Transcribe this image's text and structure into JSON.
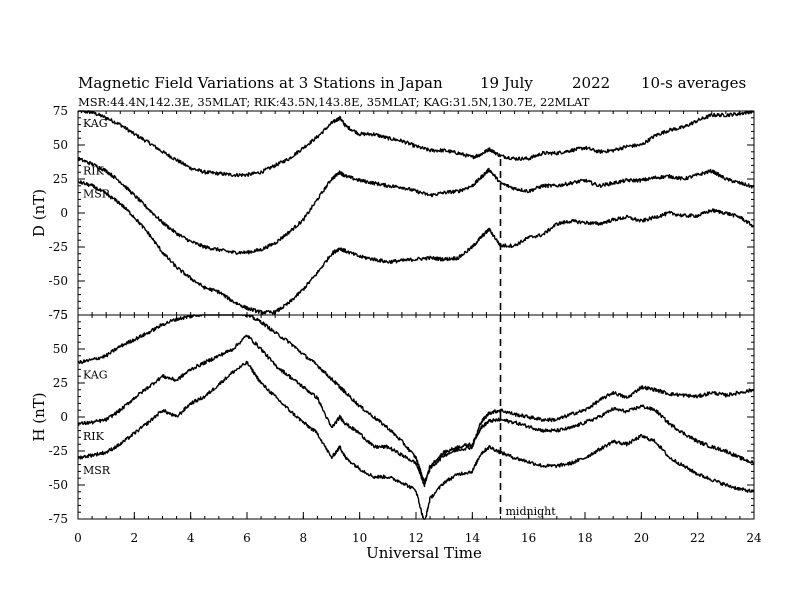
{
  "header": {
    "title": "Magnetic Field Variations at 3 Stations in Japan",
    "date": "19 July",
    "year": "2022",
    "resolution": "10-s averages",
    "stations_line": "MSR:44.4N,142.3E, 35MLAT;  RIK:43.5N,143.8E, 35MLAT;  KAG:31.5N,130.7E, 22MLAT"
  },
  "chart_data": {
    "type": "line",
    "x_label": "Universal Time",
    "x_range": [
      0,
      24
    ],
    "x_ticks": [
      "0",
      "2",
      "4",
      "6",
      "8",
      "10",
      "12",
      "14",
      "16",
      "18",
      "20",
      "22",
      "24"
    ],
    "marker": {
      "x": 15,
      "label": "midnight"
    },
    "panels": [
      {
        "id": "D",
        "y_label": "D (nT)",
        "y_range": [
          -75,
          75
        ],
        "y_ticks": [
          "75",
          "50",
          "25",
          "0",
          "-25",
          "-50",
          "-75"
        ],
        "series": [
          {
            "name": "KAG",
            "x": [
              0,
              0.5,
              1,
              1.5,
              2,
              2.5,
              3,
              3.5,
              4,
              4.5,
              5,
              5.5,
              6,
              6.5,
              7,
              7.5,
              8,
              8.5,
              9,
              9.3,
              9.5,
              10,
              10.5,
              11,
              11.5,
              12,
              12.5,
              13,
              13.5,
              14,
              14.3,
              14.6,
              15,
              15.5,
              16,
              16.5,
              17,
              17.5,
              18,
              18.5,
              19,
              19.5,
              20,
              20.5,
              21,
              21.5,
              22,
              22.5,
              23,
              23.5,
              24
            ],
            "y": [
              75,
              74,
              70,
              65,
              58,
              52,
              45,
              39,
              33,
              30,
              29,
              28,
              28,
              30,
              35,
              40,
              48,
              56,
              66,
              70,
              64,
              58,
              58,
              55,
              53,
              49,
              46,
              46,
              44,
              41,
              43,
              47,
              42,
              40,
              40,
              44,
              44,
              46,
              48,
              45,
              46,
              49,
              50,
              57,
              61,
              63,
              68,
              72,
              72,
              73,
              75
            ]
          },
          {
            "name": "RIK",
            "x": [
              0,
              0.5,
              1,
              1.5,
              2,
              2.5,
              3,
              3.5,
              4,
              4.5,
              5,
              5.5,
              6,
              6.5,
              7,
              7.5,
              8,
              8.5,
              9,
              9.3,
              9.5,
              10,
              10.5,
              11,
              11.5,
              12,
              12.5,
              13,
              13.5,
              14,
              14.3,
              14.6,
              15,
              15.5,
              16,
              16.5,
              17,
              17.5,
              18,
              18.5,
              19,
              19.5,
              20,
              20.5,
              21,
              21.5,
              22,
              22.5,
              23,
              23.5,
              24
            ],
            "y": [
              40,
              36,
              31,
              23,
              13,
              3,
              -7,
              -15,
              -21,
              -25,
              -27,
              -29,
              -29,
              -27,
              -22,
              -14,
              -5,
              10,
              25,
              30,
              27,
              24,
              22,
              20,
              19,
              16,
              13,
              15,
              16,
              20,
              26,
              32,
              22,
              18,
              16,
              20,
              20,
              22,
              24,
              20,
              22,
              24,
              24,
              26,
              27,
              25,
              28,
              31,
              25,
              22,
              19
            ]
          },
          {
            "name": "MSR",
            "x": [
              0,
              0.5,
              1,
              1.5,
              2,
              2.5,
              3,
              3.5,
              4,
              4.5,
              5,
              5.5,
              6,
              6.5,
              7,
              7.5,
              8,
              8.5,
              9,
              9.3,
              9.5,
              10,
              10.5,
              11,
              11.5,
              12,
              12.5,
              13,
              13.5,
              14,
              14.3,
              14.6,
              15,
              15.5,
              16,
              16.5,
              17,
              17.5,
              18,
              18.5,
              19,
              19.5,
              20,
              20.5,
              21,
              21.5,
              22,
              22.5,
              23,
              23.5,
              24
            ],
            "y": [
              23,
              20,
              14,
              7,
              -3,
              -15,
              -29,
              -40,
              -48,
              -55,
              -58,
              -65,
              -70,
              -73,
              -73,
              -66,
              -56,
              -44,
              -30,
              -26,
              -28,
              -32,
              -34,
              -36,
              -35,
              -34,
              -33,
              -34,
              -33,
              -25,
              -18,
              -12,
              -24,
              -24,
              -18,
              -16,
              -8,
              -6,
              -7,
              -8,
              -5,
              -3,
              -6,
              -3,
              0,
              -2,
              -2,
              2,
              0,
              -3,
              -10
            ]
          }
        ]
      },
      {
        "id": "H",
        "y_label": "H (nT)",
        "y_range": [
          -75,
          75
        ],
        "y_ticks": [
          "75",
          "50",
          "25",
          "0",
          "-25",
          "-50",
          "-75"
        ],
        "series": [
          {
            "name": "KAG",
            "x": [
              0,
              0.5,
              1,
              1.5,
              2,
              2.5,
              3,
              3.5,
              4,
              4.5,
              5,
              5.5,
              6,
              6.5,
              7,
              7.5,
              8,
              8.5,
              9,
              9.3,
              9.5,
              10,
              10.5,
              11,
              11.5,
              12,
              12.3,
              12.5,
              13,
              13.5,
              14,
              14.3,
              14.6,
              15,
              15.5,
              16,
              16.5,
              17,
              17.5,
              18,
              18.5,
              19,
              19.5,
              20,
              20.5,
              21,
              21.5,
              22,
              22.5,
              23,
              23.5,
              24
            ],
            "y": [
              40,
              42,
              45,
              52,
              57,
              62,
              68,
              72,
              74,
              76,
              77,
              78,
              75,
              70,
              62,
              55,
              46,
              38,
              28,
              22,
              18,
              8,
              0,
              -8,
              -18,
              -30,
              -48,
              -38,
              -28,
              -24,
              -22,
              -4,
              3,
              5,
              2,
              0,
              -2,
              -2,
              2,
              5,
              12,
              18,
              14,
              22,
              20,
              17,
              16,
              15,
              18,
              16,
              18,
              20
            ]
          },
          {
            "name": "RIK",
            "x": [
              0,
              0.5,
              1,
              1.5,
              2,
              2.5,
              3,
              3.5,
              4,
              4.5,
              5,
              5.5,
              6,
              6.5,
              7,
              7.5,
              8,
              8.5,
              9,
              9.3,
              9.5,
              10,
              10.5,
              11,
              11.5,
              12,
              12.3,
              12.5,
              13,
              13.5,
              14,
              14.3,
              14.6,
              15,
              15.5,
              16,
              16.5,
              17,
              17.5,
              18,
              18.5,
              19,
              19.5,
              20,
              20.5,
              21,
              21.5,
              22,
              22.5,
              23,
              23.5,
              24
            ],
            "y": [
              -5,
              -4,
              -2,
              5,
              14,
              22,
              30,
              27,
              35,
              40,
              45,
              50,
              60,
              50,
              38,
              30,
              22,
              14,
              -8,
              0,
              -5,
              -12,
              -22,
              -22,
              -28,
              -34,
              -50,
              -36,
              -26,
              -22,
              -20,
              -8,
              -3,
              -2,
              -4,
              -7,
              -10,
              -10,
              -8,
              -4,
              0,
              6,
              4,
              8,
              5,
              -5,
              -12,
              -18,
              -22,
              -25,
              -30,
              -34
            ]
          },
          {
            "name": "MSR",
            "x": [
              0,
              0.5,
              1,
              1.5,
              2,
              2.5,
              3,
              3.5,
              4,
              4.5,
              5,
              5.5,
              6,
              6.5,
              7,
              7.5,
              8,
              8.5,
              9,
              9.3,
              9.5,
              10,
              10.5,
              11,
              11.5,
              12,
              12.3,
              12.5,
              13,
              13.5,
              14,
              14.3,
              14.6,
              15,
              15.5,
              16,
              16.5,
              17,
              17.5,
              18,
              18.5,
              19,
              19.5,
              20,
              20.5,
              21,
              21.5,
              22,
              22.5,
              23,
              23.5,
              24
            ],
            "y": [
              -30,
              -28,
              -26,
              -20,
              -12,
              -4,
              5,
              0,
              10,
              15,
              24,
              33,
              40,
              25,
              15,
              5,
              -4,
              -12,
              -30,
              -22,
              -30,
              -38,
              -44,
              -44,
              -48,
              -54,
              -78,
              -60,
              -48,
              -42,
              -40,
              -27,
              -22,
              -26,
              -30,
              -33,
              -36,
              -36,
              -34,
              -30,
              -24,
              -18,
              -20,
              -14,
              -18,
              -30,
              -36,
              -42,
              -46,
              -50,
              -53,
              -55
            ]
          }
        ]
      }
    ]
  }
}
